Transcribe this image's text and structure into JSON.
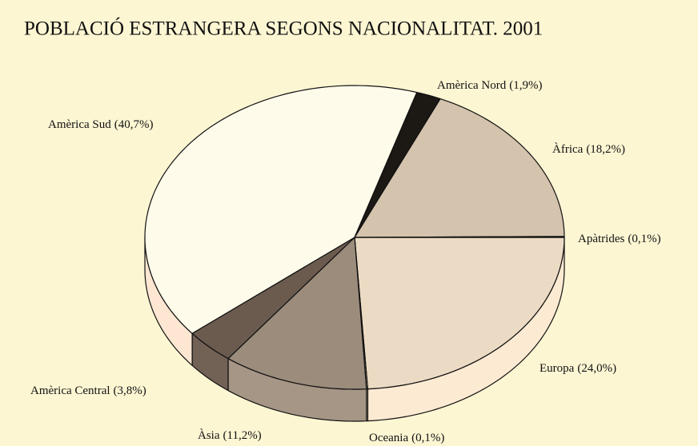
{
  "chart_data": {
    "type": "pie",
    "title": "POBLACIÓ ESTRANGERA SEGONS NACIONALITAT. 2001",
    "categories": [
      "Europa",
      "Oceania",
      "Àsia",
      "Amèrica Central",
      "Amèrica Sud",
      "Amèrica Nord",
      "Àfrica",
      "Apàtrides"
    ],
    "values": [
      24.0,
      0.1,
      11.2,
      3.8,
      40.7,
      1.9,
      18.2,
      0.1
    ],
    "value_labels": [
      "(24,0%)",
      "(0,1%)",
      "(11,2%)",
      "(3,8%)",
      "(40,7%)",
      "(1,9%)",
      "(18,2%)",
      "(0,1%)"
    ],
    "colors": [
      "#ecdbc4",
      "#e6d5be",
      "#9b8c7c",
      "#6b5b4f",
      "#fffbea",
      "#1c1814",
      "#d4c3ad",
      "#d4c3ad"
    ]
  }
}
